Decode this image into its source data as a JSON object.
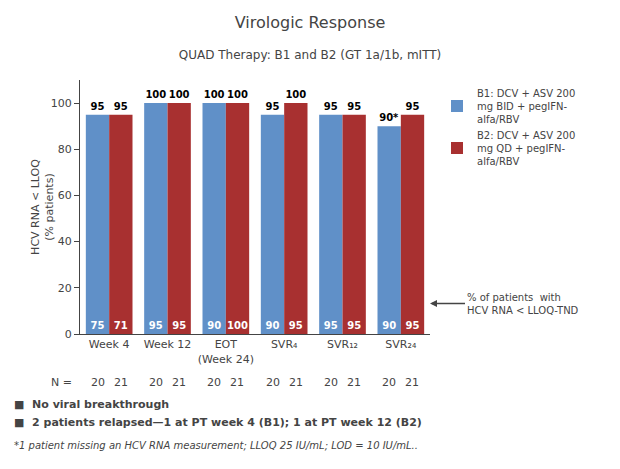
{
  "chart_data": {
    "type": "bar",
    "title": "Virologic Response",
    "subtitle": "QUAD Therapy: B1 and B2 (GT 1a/1b, mITT)",
    "categories": [
      "Week 4",
      "Week 12",
      "EOT\n(Week 24)",
      "SVR₄",
      "SVR₁₂",
      "SVR₂₄"
    ],
    "ylabel": "HCV RNA < LLOQ\n(% patients)",
    "ylim": [
      0,
      110
    ],
    "yticks": [
      0,
      20,
      40,
      60,
      80,
      100
    ],
    "grid": false,
    "legend": "upper right",
    "data_labels": true,
    "series": [
      {
        "name": "B1: DCV + ASV 200\nmg BID + pegIFN-\nalfa/RBV",
        "color": "#6090c8",
        "values": [
          95,
          100,
          100,
          95,
          95,
          90
        ],
        "value_labels": [
          "95",
          "100",
          "100",
          "95",
          "95",
          "90*"
        ],
        "tnd": [
          75,
          95,
          90,
          90,
          95,
          90
        ],
        "n": [
          20,
          20,
          20,
          20,
          20,
          20
        ]
      },
      {
        "name": "B2: DCV + ASV 200\nmg QD + pegIFN-\nalfa/RBV",
        "color": "#a83030",
        "values": [
          95,
          100,
          100,
          100,
          95,
          95
        ],
        "value_labels": [
          "95",
          "100",
          "100",
          "100",
          "95",
          "95"
        ],
        "tnd": [
          71,
          95,
          100,
          95,
          95,
          95
        ],
        "n": [
          21,
          21,
          21,
          21,
          21,
          21
        ]
      }
    ],
    "n_label": "N =",
    "arrow_label": "% of patients  with\nHCV RNA < LLOQ-TND",
    "bullets": [
      "■  No viral breakthrough",
      "■  2 patients relapsed—1 at PT week 4 (B1); 1 at PT week 12 (B2)"
    ],
    "footnote": "*1 patient missing an HCV RNA measurement; LLOQ 25 IU/mL; LOD = 10 IU/mL.."
  }
}
